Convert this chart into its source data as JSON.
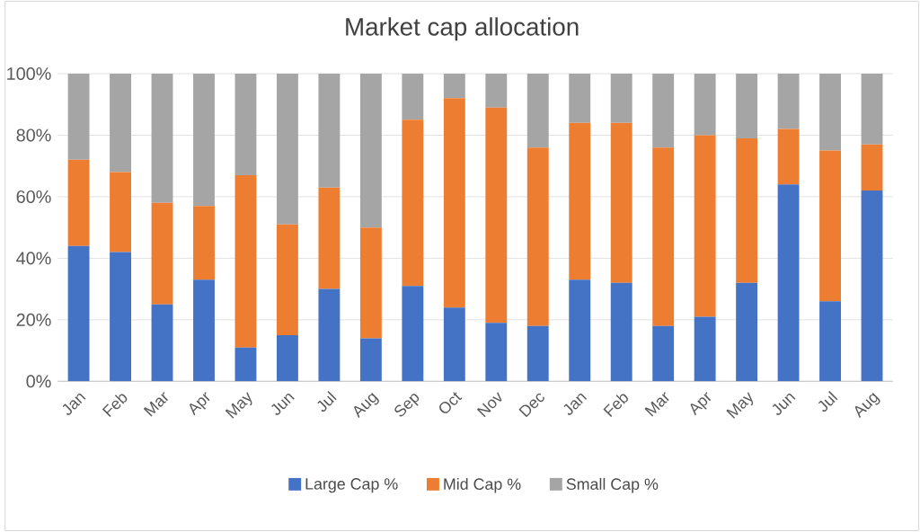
{
  "chart_data": {
    "type": "bar",
    "stacked": true,
    "title": "Market cap allocation",
    "categories": [
      "Jan",
      "Feb",
      "Mar",
      "Apr",
      "May",
      "Jun",
      "Jul",
      "Aug",
      "Sep",
      "Oct",
      "Nov",
      "Dec",
      "Jan",
      "Feb",
      "Mar",
      "Apr",
      "May",
      "Jun",
      "Jul",
      "Aug"
    ],
    "series": [
      {
        "name": "Large Cap %",
        "color": "#4472c4",
        "values": [
          44,
          42,
          25,
          33,
          11,
          15,
          30,
          14,
          31,
          24,
          19,
          18,
          33,
          32,
          18,
          21,
          32,
          64,
          26,
          62
        ]
      },
      {
        "name": "Mid Cap %",
        "color": "#ed7d31",
        "values": [
          28,
          26,
          33,
          24,
          56,
          36,
          33,
          36,
          54,
          68,
          70,
          58,
          51,
          52,
          58,
          59,
          47,
          18,
          49,
          15
        ]
      },
      {
        "name": "Small Cap %",
        "color": "#a5a5a5",
        "values": [
          28,
          32,
          42,
          43,
          33,
          49,
          37,
          50,
          15,
          8,
          11,
          24,
          16,
          16,
          24,
          20,
          21,
          18,
          25,
          23
        ]
      }
    ],
    "ylim": [
      0,
      100
    ],
    "yticks": [
      {
        "value": 0,
        "label": "0%"
      },
      {
        "value": 20,
        "label": "20%"
      },
      {
        "value": 40,
        "label": "40%"
      },
      {
        "value": 60,
        "label": "60%"
      },
      {
        "value": 80,
        "label": "80%"
      },
      {
        "value": 100,
        "label": "100%"
      }
    ],
    "grid": "y",
    "legend": "bottom"
  }
}
